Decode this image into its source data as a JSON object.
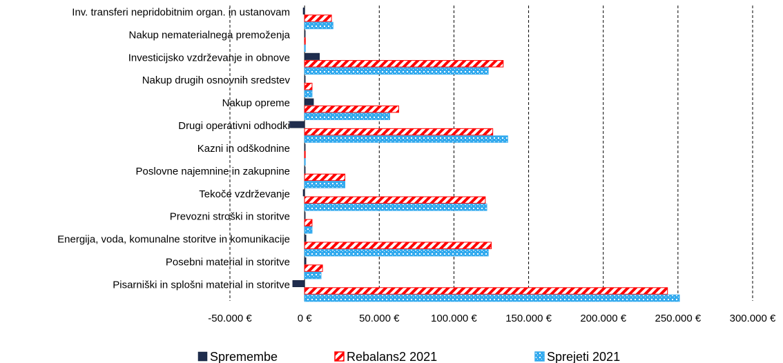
{
  "chart_data": {
    "type": "bar",
    "orientation": "horizontal",
    "categories": [
      "Inv. transferi nepridobitnim organ. in ustanovam",
      "Nakup nematerialnega premoženja",
      "Investicijsko vzdrževanje in obnove",
      "Nakup drugih osnovnih sredstev",
      "Nakup opreme",
      "Drugi operativni odhodki",
      "Kazni in odškodnine",
      "Poslovne najemnine in zakupnine",
      "Tekoče vzdrževanje",
      "Prevozni stroški in storitve",
      "Energija, voda, komunalne storitve in komunikacije",
      "Posebni material in storitve",
      "Pisarniški in splošni material in storitve"
    ],
    "series": [
      {
        "name": "Spremembe",
        "color": "#1f2d4e",
        "values": [
          -1000,
          0,
          10000,
          0,
          6000,
          -10000,
          0,
          0,
          -1000,
          0,
          1000,
          1000,
          -8000
        ]
      },
      {
        "name": "Rebalans2 2021",
        "color": "#ff0000",
        "values": [
          18000,
          500,
          133000,
          5000,
          63000,
          126000,
          300,
          27000,
          121000,
          5000,
          125000,
          12000,
          243000
        ]
      },
      {
        "name": "Sprejeti 2021",
        "color": "#33aaee",
        "values": [
          19000,
          500,
          123000,
          5000,
          57000,
          136000,
          300,
          27000,
          122000,
          5000,
          123000,
          11000,
          251000
        ]
      }
    ],
    "xlim": [
      -50000,
      300000
    ],
    "ticks": [
      -50000,
      0,
      50000,
      100000,
      150000,
      200000,
      250000,
      300000
    ],
    "tick_labels": [
      "-50.000 €",
      "0 €",
      "50.000 €",
      "100.000 €",
      "150.000 €",
      "200.000 €",
      "250.000 €",
      "300.000 €"
    ],
    "grid": "vertical dashed",
    "legend_position": "bottom"
  }
}
